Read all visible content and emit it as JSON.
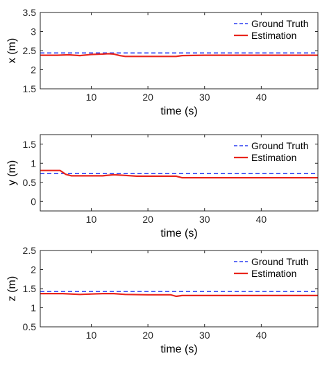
{
  "colors": {
    "ground_truth": "#2b3ff2",
    "estimation": "#e8251c",
    "axis": "#262626",
    "background": "#ffffff"
  },
  "chart_data": [
    {
      "type": "line",
      "xlabel": "time (s)",
      "ylabel": "x (m)",
      "xlim": [
        1,
        50
      ],
      "ylim": [
        1.5,
        3.5
      ],
      "xticks": [
        10,
        20,
        30,
        40
      ],
      "yticks": [
        1.5,
        2,
        2.5,
        3,
        3.5
      ],
      "ytick_labels": [
        "1.5",
        "2",
        "2.5",
        "3",
        "3.5"
      ],
      "legend_position": "top-right",
      "grid": false,
      "series": [
        {
          "name": "Ground Truth",
          "style": "dashed",
          "x": [
            1,
            50
          ],
          "y": [
            2.44,
            2.44
          ]
        },
        {
          "name": "Estimation",
          "style": "solid",
          "x": [
            1,
            4,
            6,
            8,
            10,
            12,
            13,
            14,
            15,
            16,
            20,
            25,
            26,
            30,
            40,
            50
          ],
          "y": [
            2.38,
            2.38,
            2.39,
            2.37,
            2.4,
            2.41,
            2.42,
            2.41,
            2.37,
            2.35,
            2.35,
            2.35,
            2.37,
            2.38,
            2.38,
            2.38
          ]
        }
      ]
    },
    {
      "type": "line",
      "xlabel": "time (s)",
      "ylabel": "y (m)",
      "xlim": [
        1,
        50
      ],
      "ylim": [
        -0.25,
        1.75
      ],
      "xticks": [
        10,
        20,
        30,
        40
      ],
      "yticks": [
        0,
        0.5,
        1,
        1.5
      ],
      "ytick_labels": [
        "0",
        "0.5",
        "1",
        "1.5"
      ],
      "legend_position": "top-right",
      "grid": false,
      "series": [
        {
          "name": "Ground Truth",
          "style": "dashed",
          "x": [
            1,
            50
          ],
          "y": [
            0.73,
            0.73
          ]
        },
        {
          "name": "Estimation",
          "style": "solid",
          "x": [
            1,
            4.5,
            5.5,
            6.5,
            8,
            12,
            14,
            16,
            18,
            20,
            25,
            26,
            30,
            40,
            50
          ],
          "y": [
            0.81,
            0.81,
            0.71,
            0.67,
            0.67,
            0.67,
            0.7,
            0.68,
            0.66,
            0.66,
            0.66,
            0.62,
            0.62,
            0.62,
            0.62
          ]
        }
      ]
    },
    {
      "type": "line",
      "xlabel": "time (s)",
      "ylabel": "z (m)",
      "xlim": [
        1,
        50
      ],
      "ylim": [
        0.5,
        2.5
      ],
      "xticks": [
        10,
        20,
        30,
        40
      ],
      "yticks": [
        0.5,
        1,
        1.5,
        2,
        2.5
      ],
      "ytick_labels": [
        "0.5",
        "1",
        "1.5",
        "2",
        "2.5"
      ],
      "legend_position": "top-right",
      "grid": false,
      "series": [
        {
          "name": "Ground Truth",
          "style": "dashed",
          "x": [
            1,
            50
          ],
          "y": [
            1.43,
            1.43
          ]
        },
        {
          "name": "Estimation",
          "style": "solid",
          "x": [
            1,
            5,
            8,
            10,
            12,
            14,
            16,
            20,
            24,
            25,
            26,
            30,
            40,
            50
          ],
          "y": [
            1.37,
            1.37,
            1.35,
            1.36,
            1.37,
            1.37,
            1.35,
            1.34,
            1.34,
            1.3,
            1.32,
            1.32,
            1.32,
            1.32
          ]
        }
      ]
    }
  ]
}
